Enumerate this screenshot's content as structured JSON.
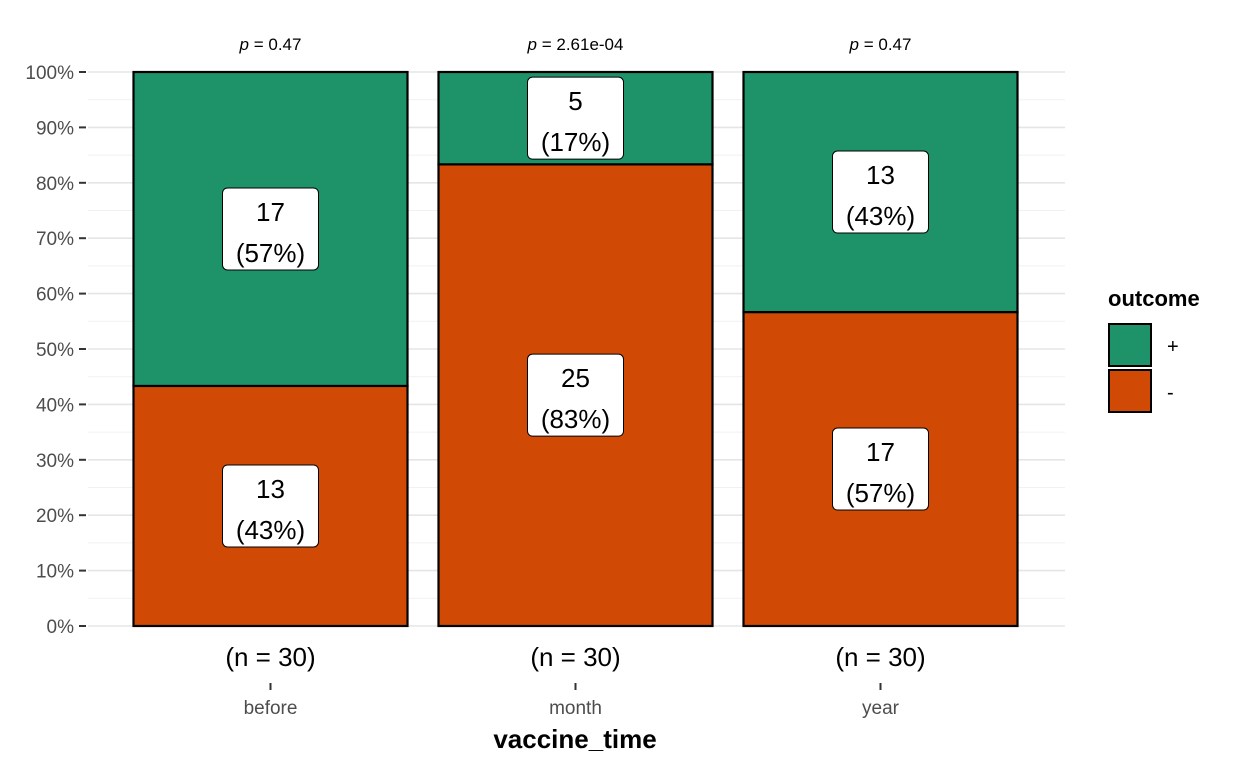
{
  "chart_data": {
    "type": "bar",
    "stacked": true,
    "percent": true,
    "categories": [
      "before",
      "month",
      "year"
    ],
    "n_labels": [
      "(n = 30)",
      "(n = 30)",
      "(n = 30)"
    ],
    "p_prefix": "p",
    "p_values": [
      "= 0.47",
      "= 2.61e-04",
      "= 0.47"
    ],
    "series": [
      {
        "name": "-",
        "values": [
          13,
          25,
          17
        ],
        "labels": [
          "(43%)",
          "(83%)",
          "(57%)"
        ],
        "color": "#D04A06"
      },
      {
        "name": "+",
        "values": [
          17,
          5,
          13
        ],
        "labels": [
          "(57%)",
          "(17%)",
          "(43%)"
        ],
        "color": "#1E936A"
      }
    ],
    "xlabel": "vaccine_time",
    "ylabel": "",
    "ylim": [
      0,
      100
    ],
    "yticks": [
      0,
      10,
      20,
      30,
      40,
      50,
      60,
      70,
      80,
      90,
      100
    ],
    "ytick_labels": [
      "0%",
      "10%",
      "20%",
      "30%",
      "40%",
      "50%",
      "60%",
      "70%",
      "80%",
      "90%",
      "100%"
    ],
    "legend": {
      "title": "outcome",
      "entries": [
        {
          "label": "+",
          "color": "#1E936A"
        },
        {
          "label": "-",
          "color": "#D04A06"
        }
      ],
      "position": "right"
    },
    "grid": true
  }
}
